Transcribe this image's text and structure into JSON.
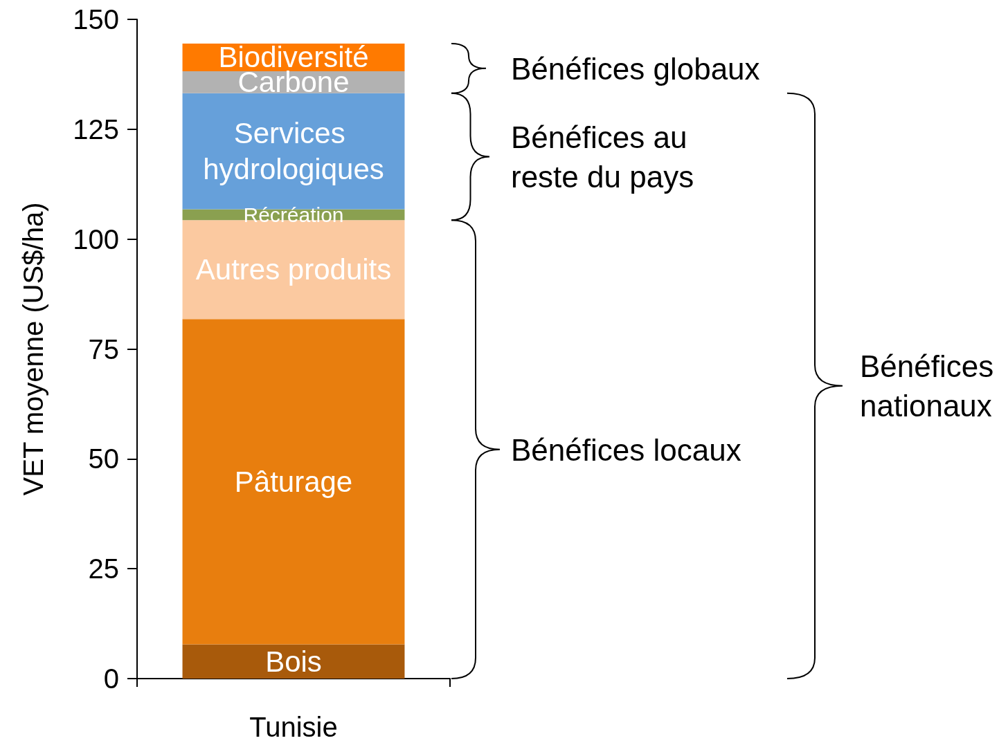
{
  "chart_data": {
    "type": "bar",
    "stacked": true,
    "ylabel": "VET moyenne (US$/ha)",
    "categories": [
      "Tunisie"
    ],
    "ylim": [
      0,
      150
    ],
    "yticks": [
      0,
      25,
      50,
      75,
      100,
      125,
      150
    ],
    "grid": false,
    "legend": false,
    "series": [
      {
        "name": "Bois",
        "color": "#a85a0b",
        "values": [
          7.8
        ]
      },
      {
        "name": "Pâturage",
        "color": "#e87e0e",
        "values": [
          74
        ]
      },
      {
        "name": "Autres produits",
        "color": "#fbc9a0",
        "values": [
          22.5
        ]
      },
      {
        "name": "Récréation",
        "color": "#8aa050",
        "values": [
          2.5
        ]
      },
      {
        "name": "Services hydrologiques",
        "color": "#66a0da",
        "values": [
          26.4
        ]
      },
      {
        "name": "Carbone",
        "color": "#b2b2b2",
        "values": [
          5
        ]
      },
      {
        "name": "Biodiversité",
        "color": "#ff7a00",
        "values": [
          6.3
        ]
      }
    ],
    "annotations": [
      "Bénéfices globaux",
      "Bénéfices au reste du pays",
      "Bénéfices locaux",
      "Bénéfices nationaux"
    ]
  }
}
